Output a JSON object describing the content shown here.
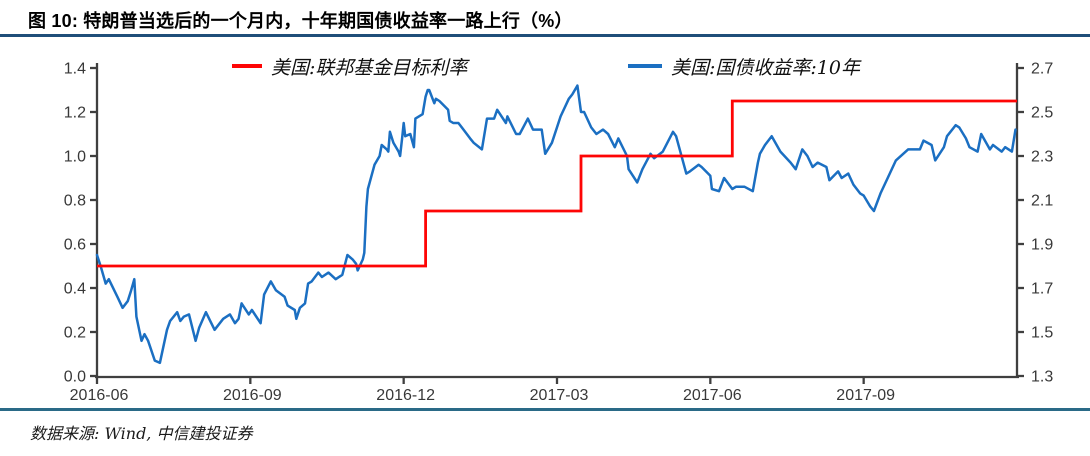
{
  "header": {
    "title": "图 10: 特朗普当选后的一个月内，十年期国债收益率一路上行（%）"
  },
  "footer": {
    "source": "数据来源: Wind, 中信建投证券"
  },
  "colors": {
    "rule_top": "#1F4E79",
    "rule_bottom": "#2A6A87",
    "fed_red": "#FE0505",
    "treasury_blue": "#1B6FC2",
    "axis": "#3F3F3F",
    "tick_text": "#383838"
  },
  "chart_data": {
    "type": "line",
    "title": "",
    "legend_position": "top",
    "grid": false,
    "x_axis": {
      "span_months": 18,
      "tick_months": [
        0,
        3,
        6,
        9,
        12,
        15
      ],
      "tick_labels": [
        "2016-06",
        "2016-09",
        "2016-12",
        "2017-03",
        "2017-06",
        "2017-09"
      ]
    },
    "left_axis": {
      "min": 0.0,
      "max": 1.4,
      "tick_values": [
        0.0,
        0.2,
        0.4,
        0.6,
        0.8,
        1.0,
        1.2,
        1.4
      ],
      "tick_labels": [
        "0.0",
        "0.2",
        "0.4",
        "0.6",
        "0.8",
        "1.0",
        "1.2",
        "1.4"
      ]
    },
    "right_axis": {
      "min": 1.3,
      "max": 2.7,
      "tick_values": [
        1.3,
        1.5,
        1.7,
        1.9,
        2.1,
        2.3,
        2.5,
        2.7
      ],
      "tick_labels": [
        "1.3",
        "1.5",
        "1.7",
        "1.9",
        "2.1",
        "2.3",
        "2.5",
        "2.7"
      ]
    },
    "series": [
      {
        "name": "美国:联邦基金目标利率",
        "color": "#FE0505",
        "axis": "left",
        "type": "step",
        "segments": [
          [
            0,
            6.43,
            0.5
          ],
          [
            6.43,
            9.47,
            0.75
          ],
          [
            9.47,
            12.43,
            1.0
          ],
          [
            12.43,
            18,
            1.25
          ]
        ]
      },
      {
        "name": "美国:国债收益率:10年",
        "color": "#1B6FC2",
        "axis": "right",
        "type": "line",
        "points": [
          [
            0.0,
            1.85
          ],
          [
            0.07,
            1.8
          ],
          [
            0.17,
            1.72
          ],
          [
            0.23,
            1.74
          ],
          [
            0.4,
            1.66
          ],
          [
            0.5,
            1.61
          ],
          [
            0.6,
            1.64
          ],
          [
            0.67,
            1.69
          ],
          [
            0.73,
            1.74
          ],
          [
            0.77,
            1.57
          ],
          [
            0.87,
            1.46
          ],
          [
            0.93,
            1.49
          ],
          [
            1.0,
            1.46
          ],
          [
            1.13,
            1.37
          ],
          [
            1.23,
            1.36
          ],
          [
            1.37,
            1.51
          ],
          [
            1.43,
            1.55
          ],
          [
            1.57,
            1.59
          ],
          [
            1.63,
            1.55
          ],
          [
            1.7,
            1.57
          ],
          [
            1.8,
            1.58
          ],
          [
            1.93,
            1.46
          ],
          [
            2.0,
            1.52
          ],
          [
            2.13,
            1.59
          ],
          [
            2.3,
            1.51
          ],
          [
            2.47,
            1.56
          ],
          [
            2.6,
            1.58
          ],
          [
            2.7,
            1.54
          ],
          [
            2.77,
            1.56
          ],
          [
            2.83,
            1.63
          ],
          [
            2.97,
            1.58
          ],
          [
            3.03,
            1.6
          ],
          [
            3.2,
            1.54
          ],
          [
            3.27,
            1.67
          ],
          [
            3.4,
            1.73
          ],
          [
            3.5,
            1.69
          ],
          [
            3.67,
            1.66
          ],
          [
            3.73,
            1.62
          ],
          [
            3.87,
            1.6
          ],
          [
            3.9,
            1.56
          ],
          [
            3.97,
            1.61
          ],
          [
            4.07,
            1.63
          ],
          [
            4.13,
            1.72
          ],
          [
            4.2,
            1.73
          ],
          [
            4.33,
            1.77
          ],
          [
            4.4,
            1.75
          ],
          [
            4.53,
            1.77
          ],
          [
            4.67,
            1.74
          ],
          [
            4.8,
            1.76
          ],
          [
            4.9,
            1.85
          ],
          [
            5.0,
            1.83
          ],
          [
            5.07,
            1.81
          ],
          [
            5.1,
            1.78
          ],
          [
            5.2,
            1.83
          ],
          [
            5.23,
            1.86
          ],
          [
            5.27,
            2.07
          ],
          [
            5.3,
            2.15
          ],
          [
            5.43,
            2.26
          ],
          [
            5.53,
            2.3
          ],
          [
            5.57,
            2.35
          ],
          [
            5.67,
            2.33
          ],
          [
            5.7,
            2.32
          ],
          [
            5.73,
            2.41
          ],
          [
            5.8,
            2.36
          ],
          [
            5.9,
            2.32
          ],
          [
            5.93,
            2.3
          ],
          [
            5.97,
            2.38
          ],
          [
            6.0,
            2.45
          ],
          [
            6.03,
            2.39
          ],
          [
            6.13,
            2.4
          ],
          [
            6.2,
            2.34
          ],
          [
            6.23,
            2.47
          ],
          [
            6.37,
            2.49
          ],
          [
            6.43,
            2.57
          ],
          [
            6.47,
            2.6
          ],
          [
            6.5,
            2.6
          ],
          [
            6.6,
            2.54
          ],
          [
            6.63,
            2.56
          ],
          [
            6.7,
            2.55
          ],
          [
            6.87,
            2.51
          ],
          [
            6.9,
            2.46
          ],
          [
            6.97,
            2.45
          ],
          [
            7.07,
            2.45
          ],
          [
            7.17,
            2.42
          ],
          [
            7.3,
            2.38
          ],
          [
            7.37,
            2.36
          ],
          [
            7.53,
            2.33
          ],
          [
            7.63,
            2.47
          ],
          [
            7.77,
            2.47
          ],
          [
            7.83,
            2.51
          ],
          [
            8.0,
            2.45
          ],
          [
            8.03,
            2.48
          ],
          [
            8.2,
            2.4
          ],
          [
            8.27,
            2.4
          ],
          [
            8.43,
            2.47
          ],
          [
            8.53,
            2.42
          ],
          [
            8.7,
            2.42
          ],
          [
            8.77,
            2.31
          ],
          [
            8.9,
            2.36
          ],
          [
            9.07,
            2.48
          ],
          [
            9.23,
            2.56
          ],
          [
            9.3,
            2.58
          ],
          [
            9.4,
            2.62
          ],
          [
            9.47,
            2.5
          ],
          [
            9.53,
            2.5
          ],
          [
            9.67,
            2.43
          ],
          [
            9.77,
            2.4
          ],
          [
            9.9,
            2.42
          ],
          [
            10.0,
            2.4
          ],
          [
            10.13,
            2.34
          ],
          [
            10.2,
            2.38
          ],
          [
            10.37,
            2.3
          ],
          [
            10.4,
            2.24
          ],
          [
            10.57,
            2.18
          ],
          [
            10.67,
            2.24
          ],
          [
            10.83,
            2.31
          ],
          [
            10.9,
            2.29
          ],
          [
            11.07,
            2.32
          ],
          [
            11.27,
            2.41
          ],
          [
            11.33,
            2.39
          ],
          [
            11.53,
            2.22
          ],
          [
            11.6,
            2.23
          ],
          [
            11.77,
            2.26
          ],
          [
            11.83,
            2.25
          ],
          [
            12.0,
            2.21
          ],
          [
            12.03,
            2.15
          ],
          [
            12.17,
            2.14
          ],
          [
            12.27,
            2.2
          ],
          [
            12.43,
            2.15
          ],
          [
            12.5,
            2.16
          ],
          [
            12.67,
            2.16
          ],
          [
            12.83,
            2.14
          ],
          [
            12.93,
            2.27
          ],
          [
            12.97,
            2.31
          ],
          [
            13.07,
            2.35
          ],
          [
            13.2,
            2.39
          ],
          [
            13.37,
            2.32
          ],
          [
            13.57,
            2.27
          ],
          [
            13.67,
            2.24
          ],
          [
            13.8,
            2.33
          ],
          [
            13.9,
            2.3
          ],
          [
            14.0,
            2.25
          ],
          [
            14.1,
            2.27
          ],
          [
            14.27,
            2.25
          ],
          [
            14.33,
            2.19
          ],
          [
            14.5,
            2.23
          ],
          [
            14.57,
            2.2
          ],
          [
            14.7,
            2.22
          ],
          [
            14.8,
            2.17
          ],
          [
            14.93,
            2.13
          ],
          [
            15.0,
            2.12
          ],
          [
            15.13,
            2.07
          ],
          [
            15.2,
            2.05
          ],
          [
            15.33,
            2.13
          ],
          [
            15.47,
            2.2
          ],
          [
            15.63,
            2.28
          ],
          [
            15.87,
            2.33
          ],
          [
            15.93,
            2.33
          ],
          [
            16.1,
            2.33
          ],
          [
            16.17,
            2.37
          ],
          [
            16.33,
            2.35
          ],
          [
            16.4,
            2.28
          ],
          [
            16.57,
            2.34
          ],
          [
            16.63,
            2.39
          ],
          [
            16.8,
            2.44
          ],
          [
            16.87,
            2.43
          ],
          [
            17.0,
            2.38
          ],
          [
            17.07,
            2.34
          ],
          [
            17.23,
            2.32
          ],
          [
            17.3,
            2.4
          ],
          [
            17.47,
            2.33
          ],
          [
            17.53,
            2.35
          ],
          [
            17.7,
            2.32
          ],
          [
            17.77,
            2.34
          ],
          [
            17.9,
            2.32
          ],
          [
            17.97,
            2.42
          ]
        ]
      }
    ]
  }
}
